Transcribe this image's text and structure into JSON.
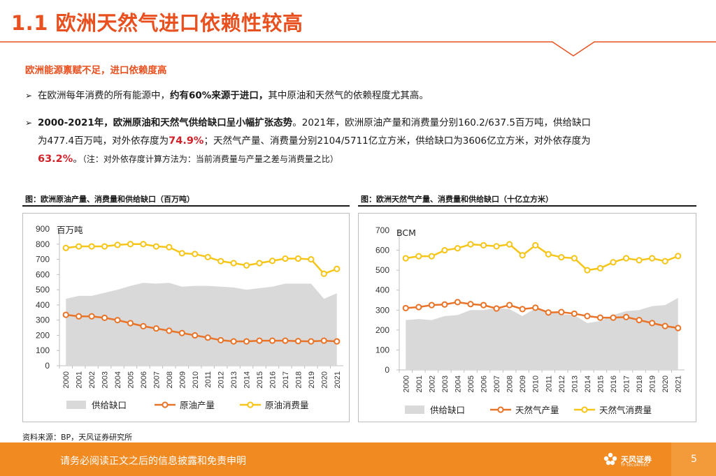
{
  "header": {
    "title": "1.1 欧洲天然气进口依赖性较高"
  },
  "section": {
    "heading": "欧洲能源禀赋不足，进口依赖度高"
  },
  "bullets": {
    "b1_pre": "在欧洲每年消费的所有能源中，",
    "b1_bold": "约有60%来源于进口，",
    "b1_post": "其中原油和天然气的依赖程度尤其高。",
    "b2_bold": "2000-2021年，欧洲原油和天然气供给缺口呈小幅扩张态势",
    "b2_a": "。2021年，欧洲原油产量和消费量分别160.2/637.5百万吨，供给缺口",
    "b2_b": "为477.4百万吨，对外依存度为",
    "b2_red1": "74.9%",
    "b2_c": "；天然气产量、消费量分别2104/5711亿立方米，供给缺口为3606亿立方米，对外依存度为",
    "b2_red2": "63.2%",
    "b2_d": "。",
    "b2_note": "（注：对外依存度计算方法为：当前消费量与产量之差与消费量之比）"
  },
  "figures": {
    "left_caption": "图：欧洲原油产量、消费量和供给缺口（百万吨）",
    "right_caption": "图：欧洲天然气产量、消费量和供给缺口（十亿立方米）"
  },
  "source": "资料来源：BP，天风证券研究所",
  "footer": {
    "disclaimer": "请务必阅读正文之后的信息披露和免责申明",
    "logo_name": "天风证券",
    "logo_sub": "TF SECURITIES",
    "page": "5"
  },
  "colors": {
    "accent": "#e8501f",
    "gap": "#d9d9d9",
    "production": "#e8742a",
    "consumption": "#f5c518",
    "footer": "#f08a21"
  },
  "chart_data": [
    {
      "type": "line",
      "title": "图：欧洲原油产量、消费量和供给缺口（百万吨）",
      "unit_label": "百万吨",
      "categories": [
        "2000",
        "2001",
        "2002",
        "2003",
        "2004",
        "2005",
        "2006",
        "2007",
        "2008",
        "2009",
        "2010",
        "2011",
        "2012",
        "2013",
        "2014",
        "2015",
        "2016",
        "2017",
        "2018",
        "2019",
        "2020",
        "2021"
      ],
      "ylim": [
        0,
        900
      ],
      "yticks": [
        0,
        100,
        200,
        300,
        400,
        500,
        600,
        700,
        800,
        900
      ],
      "series": [
        {
          "name": "供给缺口",
          "kind": "area",
          "values": [
            440,
            460,
            460,
            480,
            500,
            525,
            545,
            540,
            545,
            520,
            525,
            525,
            520,
            515,
            500,
            510,
            520,
            540,
            540,
            540,
            440,
            477
          ]
        },
        {
          "name": "原油产量",
          "kind": "line",
          "values": [
            335,
            325,
            325,
            315,
            300,
            280,
            260,
            245,
            230,
            215,
            200,
            185,
            168,
            160,
            160,
            165,
            165,
            165,
            162,
            160,
            165,
            160
          ]
        },
        {
          "name": "原油消费量",
          "kind": "line",
          "values": [
            775,
            785,
            785,
            785,
            795,
            800,
            800,
            785,
            780,
            740,
            735,
            715,
            688,
            675,
            660,
            675,
            690,
            705,
            705,
            700,
            605,
            637
          ]
        }
      ],
      "legend": "bottom"
    },
    {
      "type": "line",
      "title": "图：欧洲天然气产量、消费量和供给缺口（十亿立方米）",
      "unit_label": "BCM",
      "categories": [
        "2000",
        "2001",
        "2002",
        "2003",
        "2004",
        "2005",
        "2006",
        "2007",
        "2008",
        "2009",
        "2010",
        "2011",
        "2012",
        "2013",
        "2014",
        "2015",
        "2016",
        "2017",
        "2018",
        "2019",
        "2020",
        "2021"
      ],
      "ylim": [
        0,
        700
      ],
      "yticks": [
        0,
        100,
        200,
        300,
        400,
        500,
        600,
        700
      ],
      "series": [
        {
          "name": "供给缺口",
          "kind": "area",
          "values": [
            250,
            255,
            250,
            270,
            275,
            300,
            300,
            310,
            305,
            270,
            310,
            295,
            280,
            275,
            235,
            245,
            275,
            295,
            300,
            320,
            325,
            361
          ]
        },
        {
          "name": "天然气产量",
          "kind": "line",
          "values": [
            310,
            315,
            325,
            328,
            340,
            330,
            325,
            308,
            325,
            305,
            312,
            288,
            290,
            282,
            270,
            262,
            262,
            265,
            250,
            235,
            220,
            210
          ]
        },
        {
          "name": "天然气消费量",
          "kind": "line",
          "values": [
            560,
            570,
            570,
            600,
            610,
            630,
            625,
            620,
            630,
            575,
            625,
            580,
            565,
            560,
            500,
            510,
            540,
            560,
            550,
            560,
            545,
            571
          ]
        }
      ],
      "legend": "bottom"
    }
  ]
}
